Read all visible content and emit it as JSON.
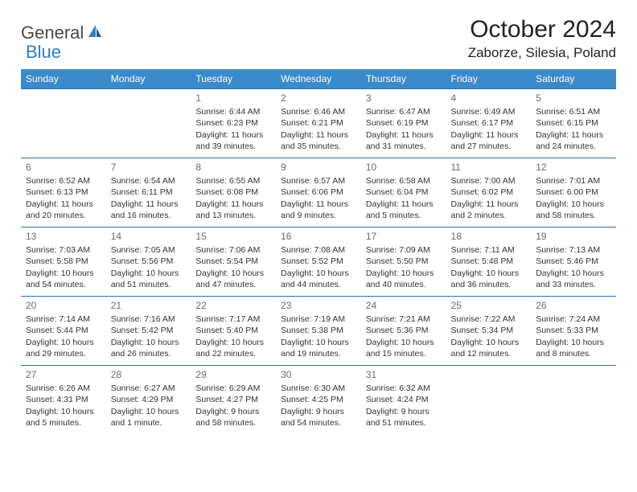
{
  "logo": {
    "part1": "General",
    "part2": "Blue"
  },
  "title": "October 2024",
  "location": "Zaborze, Silesia, Poland",
  "header_bg": "#3b8bca",
  "header_fg": "#ffffff",
  "row_border": "#2f6fa7",
  "text_color": "#333333",
  "daynum_color": "#6a6a6a",
  "body_fontsize": 10.5,
  "days": [
    "Sunday",
    "Monday",
    "Tuesday",
    "Wednesday",
    "Thursday",
    "Friday",
    "Saturday"
  ],
  "weeks": [
    [
      null,
      null,
      {
        "n": "1",
        "sr": "Sunrise: 6:44 AM",
        "ss": "Sunset: 6:23 PM",
        "dl": "Daylight: 11 hours and 39 minutes."
      },
      {
        "n": "2",
        "sr": "Sunrise: 6:46 AM",
        "ss": "Sunset: 6:21 PM",
        "dl": "Daylight: 11 hours and 35 minutes."
      },
      {
        "n": "3",
        "sr": "Sunrise: 6:47 AM",
        "ss": "Sunset: 6:19 PM",
        "dl": "Daylight: 11 hours and 31 minutes."
      },
      {
        "n": "4",
        "sr": "Sunrise: 6:49 AM",
        "ss": "Sunset: 6:17 PM",
        "dl": "Daylight: 11 hours and 27 minutes."
      },
      {
        "n": "5",
        "sr": "Sunrise: 6:51 AM",
        "ss": "Sunset: 6:15 PM",
        "dl": "Daylight: 11 hours and 24 minutes."
      }
    ],
    [
      {
        "n": "6",
        "sr": "Sunrise: 6:52 AM",
        "ss": "Sunset: 6:13 PM",
        "dl": "Daylight: 11 hours and 20 minutes."
      },
      {
        "n": "7",
        "sr": "Sunrise: 6:54 AM",
        "ss": "Sunset: 6:11 PM",
        "dl": "Daylight: 11 hours and 16 minutes."
      },
      {
        "n": "8",
        "sr": "Sunrise: 6:55 AM",
        "ss": "Sunset: 6:08 PM",
        "dl": "Daylight: 11 hours and 13 minutes."
      },
      {
        "n": "9",
        "sr": "Sunrise: 6:57 AM",
        "ss": "Sunset: 6:06 PM",
        "dl": "Daylight: 11 hours and 9 minutes."
      },
      {
        "n": "10",
        "sr": "Sunrise: 6:58 AM",
        "ss": "Sunset: 6:04 PM",
        "dl": "Daylight: 11 hours and 5 minutes."
      },
      {
        "n": "11",
        "sr": "Sunrise: 7:00 AM",
        "ss": "Sunset: 6:02 PM",
        "dl": "Daylight: 11 hours and 2 minutes."
      },
      {
        "n": "12",
        "sr": "Sunrise: 7:01 AM",
        "ss": "Sunset: 6:00 PM",
        "dl": "Daylight: 10 hours and 58 minutes."
      }
    ],
    [
      {
        "n": "13",
        "sr": "Sunrise: 7:03 AM",
        "ss": "Sunset: 5:58 PM",
        "dl": "Daylight: 10 hours and 54 minutes."
      },
      {
        "n": "14",
        "sr": "Sunrise: 7:05 AM",
        "ss": "Sunset: 5:56 PM",
        "dl": "Daylight: 10 hours and 51 minutes."
      },
      {
        "n": "15",
        "sr": "Sunrise: 7:06 AM",
        "ss": "Sunset: 5:54 PM",
        "dl": "Daylight: 10 hours and 47 minutes."
      },
      {
        "n": "16",
        "sr": "Sunrise: 7:08 AM",
        "ss": "Sunset: 5:52 PM",
        "dl": "Daylight: 10 hours and 44 minutes."
      },
      {
        "n": "17",
        "sr": "Sunrise: 7:09 AM",
        "ss": "Sunset: 5:50 PM",
        "dl": "Daylight: 10 hours and 40 minutes."
      },
      {
        "n": "18",
        "sr": "Sunrise: 7:11 AM",
        "ss": "Sunset: 5:48 PM",
        "dl": "Daylight: 10 hours and 36 minutes."
      },
      {
        "n": "19",
        "sr": "Sunrise: 7:13 AM",
        "ss": "Sunset: 5:46 PM",
        "dl": "Daylight: 10 hours and 33 minutes."
      }
    ],
    [
      {
        "n": "20",
        "sr": "Sunrise: 7:14 AM",
        "ss": "Sunset: 5:44 PM",
        "dl": "Daylight: 10 hours and 29 minutes."
      },
      {
        "n": "21",
        "sr": "Sunrise: 7:16 AM",
        "ss": "Sunset: 5:42 PM",
        "dl": "Daylight: 10 hours and 26 minutes."
      },
      {
        "n": "22",
        "sr": "Sunrise: 7:17 AM",
        "ss": "Sunset: 5:40 PM",
        "dl": "Daylight: 10 hours and 22 minutes."
      },
      {
        "n": "23",
        "sr": "Sunrise: 7:19 AM",
        "ss": "Sunset: 5:38 PM",
        "dl": "Daylight: 10 hours and 19 minutes."
      },
      {
        "n": "24",
        "sr": "Sunrise: 7:21 AM",
        "ss": "Sunset: 5:36 PM",
        "dl": "Daylight: 10 hours and 15 minutes."
      },
      {
        "n": "25",
        "sr": "Sunrise: 7:22 AM",
        "ss": "Sunset: 5:34 PM",
        "dl": "Daylight: 10 hours and 12 minutes."
      },
      {
        "n": "26",
        "sr": "Sunrise: 7:24 AM",
        "ss": "Sunset: 5:33 PM",
        "dl": "Daylight: 10 hours and 8 minutes."
      }
    ],
    [
      {
        "n": "27",
        "sr": "Sunrise: 6:26 AM",
        "ss": "Sunset: 4:31 PM",
        "dl": "Daylight: 10 hours and 5 minutes."
      },
      {
        "n": "28",
        "sr": "Sunrise: 6:27 AM",
        "ss": "Sunset: 4:29 PM",
        "dl": "Daylight: 10 hours and 1 minute."
      },
      {
        "n": "29",
        "sr": "Sunrise: 6:29 AM",
        "ss": "Sunset: 4:27 PM",
        "dl": "Daylight: 9 hours and 58 minutes."
      },
      {
        "n": "30",
        "sr": "Sunrise: 6:30 AM",
        "ss": "Sunset: 4:25 PM",
        "dl": "Daylight: 9 hours and 54 minutes."
      },
      {
        "n": "31",
        "sr": "Sunrise: 6:32 AM",
        "ss": "Sunset: 4:24 PM",
        "dl": "Daylight: 9 hours and 51 minutes."
      },
      null,
      null
    ]
  ]
}
